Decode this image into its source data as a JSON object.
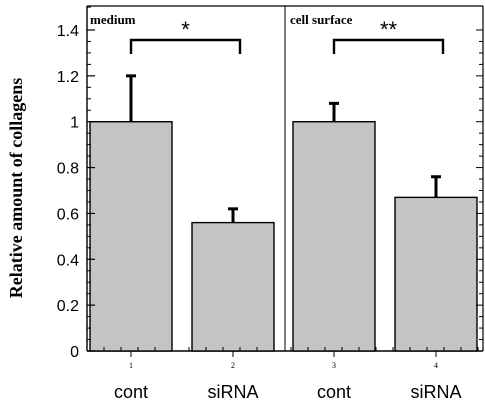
{
  "chart_data": {
    "type": "bar",
    "ylabel": "Relative amount of collagens",
    "ylim": [
      0,
      1.5
    ],
    "yticks": [
      {
        "value": 0,
        "label": "0"
      },
      {
        "value": 0.2,
        "label": "0.2"
      },
      {
        "value": 0.4,
        "label": "0.4"
      },
      {
        "value": 0.6,
        "label": "0.6"
      },
      {
        "value": 0.8,
        "label": "0.8"
      },
      {
        "value": 1.0,
        "label": "1"
      },
      {
        "value": 1.2,
        "label": "1.2"
      },
      {
        "value": 1.4,
        "label": "1.4"
      }
    ],
    "panels": [
      {
        "label": "medium",
        "significance": "*",
        "bars": [
          {
            "index_label": "1",
            "category": "cont",
            "value": 1.0,
            "error": 0.2
          },
          {
            "index_label": "2",
            "category": "siRNA",
            "value": 0.56,
            "error": 0.06
          }
        ]
      },
      {
        "label": "cell surface",
        "significance": "**",
        "bars": [
          {
            "index_label": "3",
            "category": "cont",
            "value": 1.0,
            "error": 0.08
          },
          {
            "index_label": "4",
            "category": "siRNA",
            "value": 0.67,
            "error": 0.09
          }
        ]
      }
    ],
    "bar_color": "#c4c4c4",
    "grid": false,
    "legend": "none"
  }
}
